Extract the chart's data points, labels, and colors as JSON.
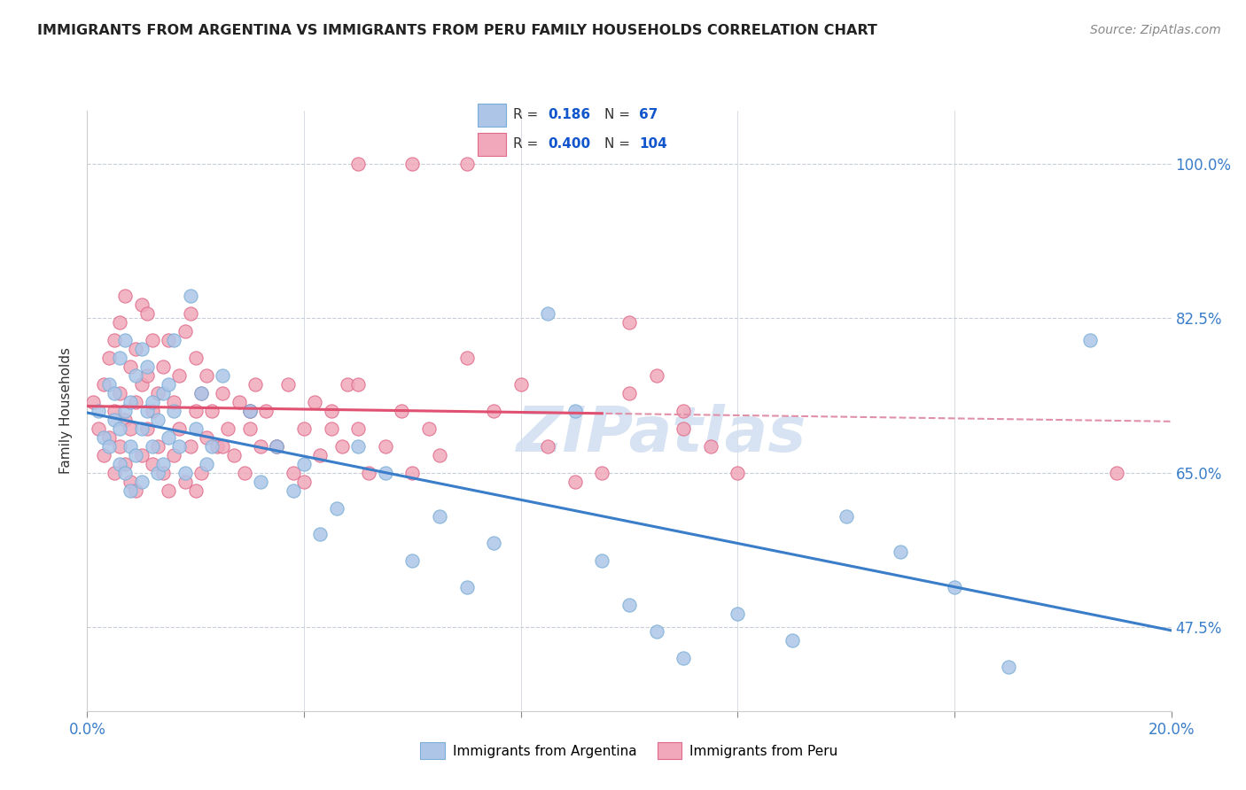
{
  "title": "IMMIGRANTS FROM ARGENTINA VS IMMIGRANTS FROM PERU FAMILY HOUSEHOLDS CORRELATION CHART",
  "source": "Source: ZipAtlas.com",
  "ylabel": "Family Households",
  "ytick_labels": [
    "47.5%",
    "65.0%",
    "82.5%",
    "100.0%"
  ],
  "ytick_values": [
    0.475,
    0.65,
    0.825,
    1.0
  ],
  "xlim": [
    0.0,
    0.2
  ],
  "ylim": [
    0.38,
    1.06
  ],
  "argentina_color": "#adc6e8",
  "argentina_edge": "#7aaed6",
  "peru_color": "#f0a8ba",
  "peru_edge": "#e06888",
  "argentina_R": 0.186,
  "argentina_N": 67,
  "peru_R": 0.4,
  "peru_N": 104,
  "legend_color": "#1155cc",
  "arg_line_color": "#3a7dc9",
  "peru_line_color": "#e05070",
  "peru_dash_color": "#e090a8",
  "watermark_color": "#d0dff0",
  "grid_color": "#c8cdd8",
  "title_color": "#222222",
  "tick_color": "#3a7dc9",
  "source_color": "#888888"
}
